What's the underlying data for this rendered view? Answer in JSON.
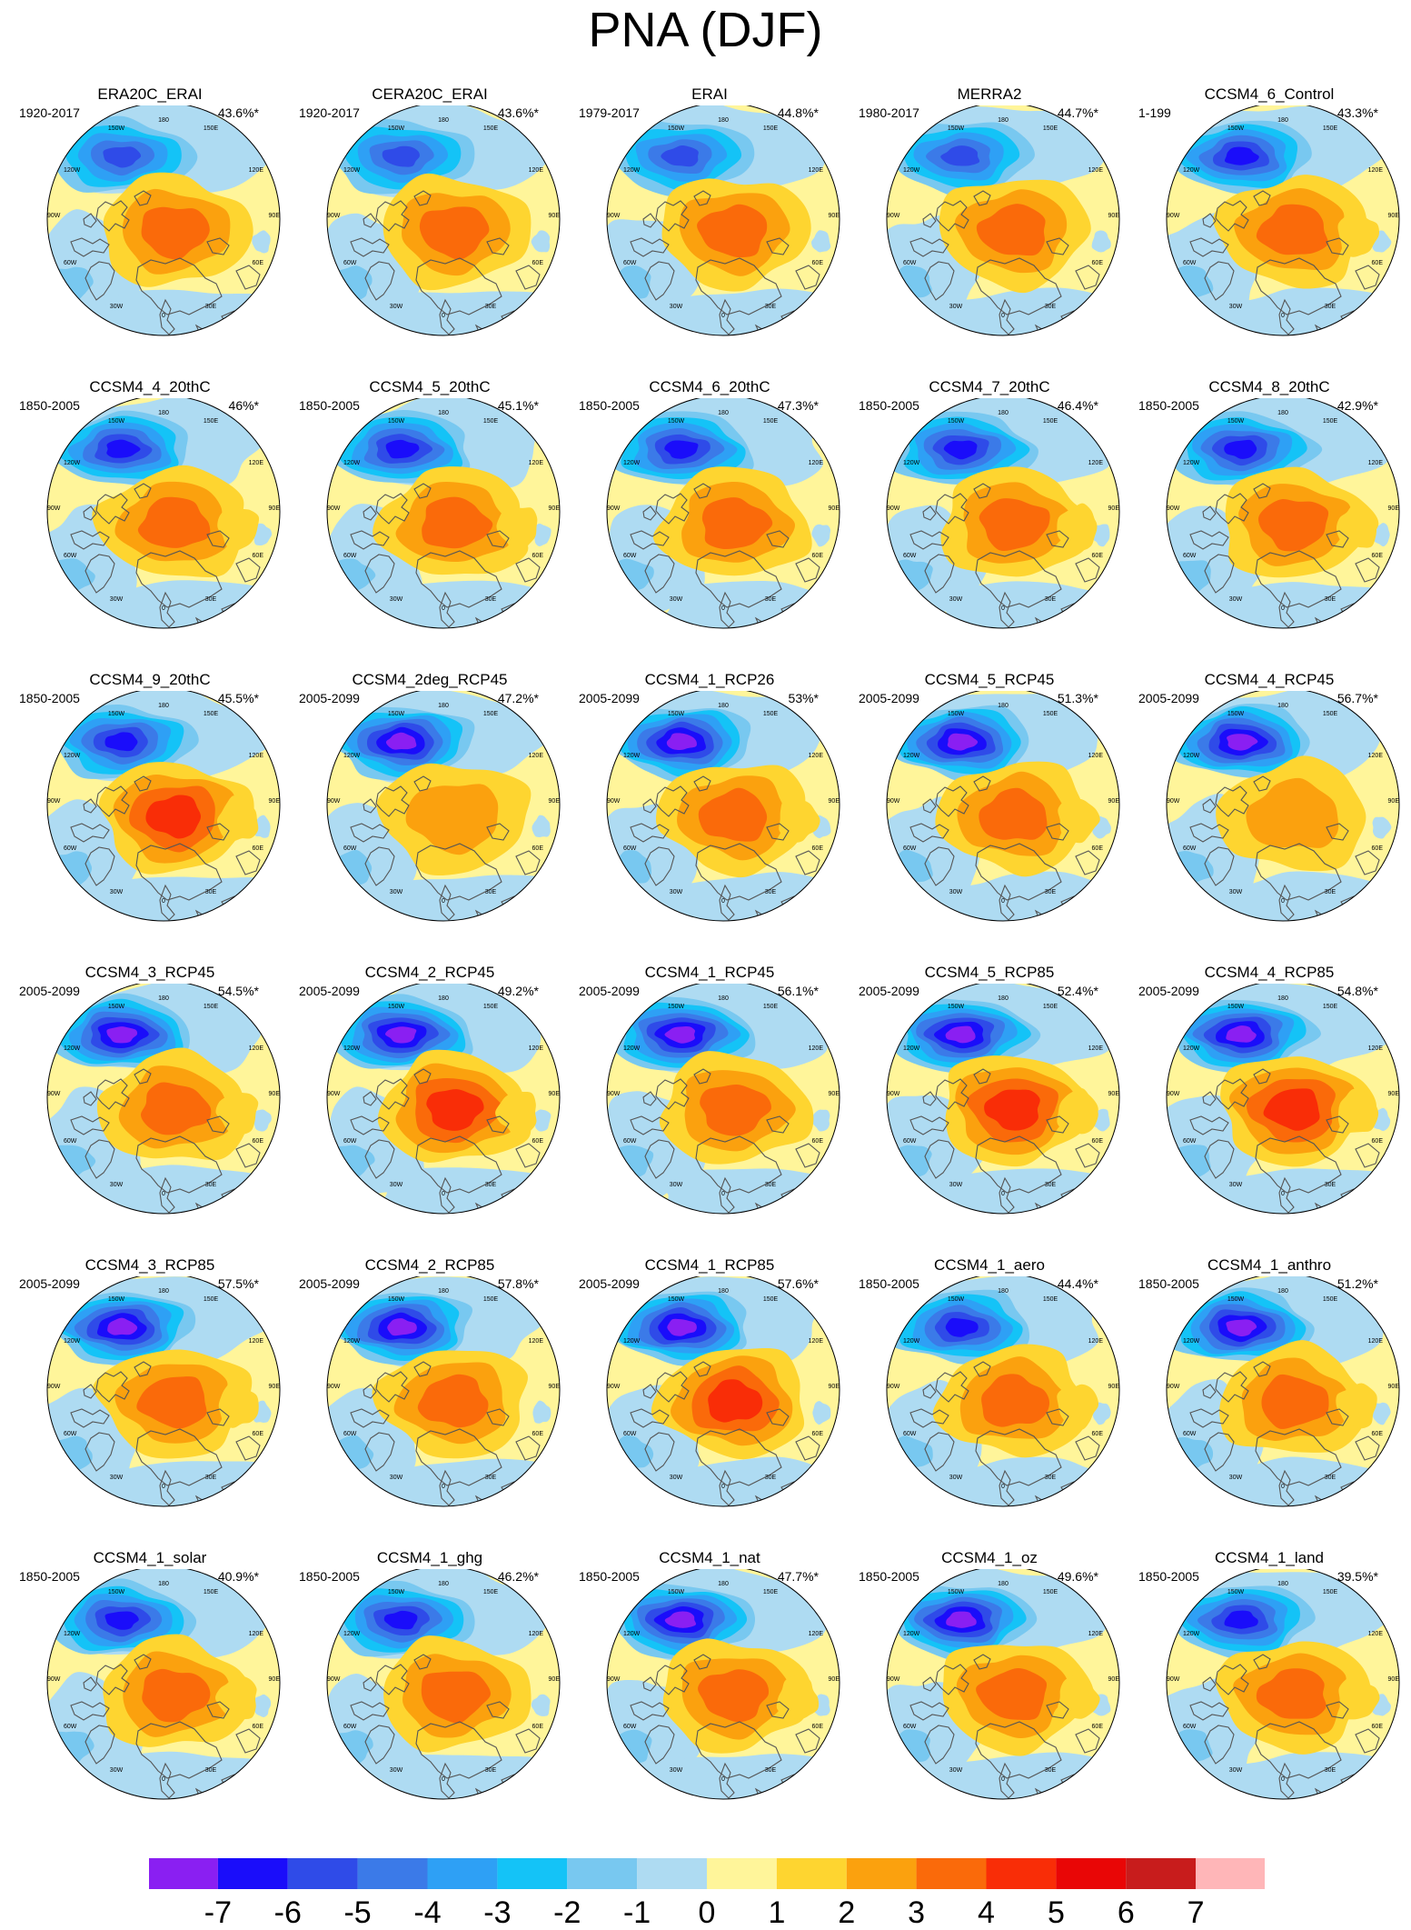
{
  "title": "PNA (DJF)",
  "lon_labels": {
    "top": "180",
    "nnw": "150W",
    "nne": "150E",
    "wnw": "120W",
    "ene": "120E",
    "w": "90W",
    "e": "90E",
    "wsw": "60W",
    "ese": "60E",
    "ssw": "30W",
    "sse": "30E",
    "bottom": "0"
  },
  "colorbar": {
    "labels": [
      "-7",
      "-6",
      "-5",
      "-4",
      "-3",
      "-2",
      "-1",
      "0",
      "1",
      "2",
      "3",
      "4",
      "5",
      "6",
      "7"
    ],
    "colors": [
      "#8a1ff2",
      "#1a0dfa",
      "#2f4be8",
      "#3b7ae8",
      "#2ea0f5",
      "#14c3f7",
      "#78c8f0",
      "#aedbf2",
      "#fff59a",
      "#fed530",
      "#fba10e",
      "#fa6a0a",
      "#f92d07",
      "#e90606",
      "#c81c1c",
      "#ffb6b8"
    ]
  },
  "panels": [
    {
      "name": "ERA20C_ERAI",
      "period": "1920-2017",
      "pct": "43.6%*",
      "neg": 5,
      "pos": 3,
      "ext": 0
    },
    {
      "name": "CERA20C_ERAI",
      "period": "1920-2017",
      "pct": "43.6%*",
      "neg": 5,
      "pos": 3,
      "ext": 0
    },
    {
      "name": "ERAI",
      "period": "1979-2017",
      "pct": "44.8%*",
      "neg": 5,
      "pos": 3,
      "ext": 0
    },
    {
      "name": "MERRA2",
      "period": "1980-2017",
      "pct": "44.7%*",
      "neg": 5,
      "pos": 3,
      "ext": 0
    },
    {
      "name": "CCSM4_6_Control",
      "period": "1-199",
      "pct": "43.3%*",
      "neg": 6,
      "pos": 3,
      "ext": 1
    },
    {
      "name": "CCSM4_4_20thC",
      "period": "1850-2005",
      "pct": "46%*",
      "neg": 6,
      "pos": 3,
      "ext": 1
    },
    {
      "name": "CCSM4_5_20thC",
      "period": "1850-2005",
      "pct": "45.1%*",
      "neg": 6,
      "pos": 3,
      "ext": 1
    },
    {
      "name": "CCSM4_6_20thC",
      "period": "1850-2005",
      "pct": "47.3%*",
      "neg": 6,
      "pos": 3,
      "ext": 0
    },
    {
      "name": "CCSM4_7_20thC",
      "period": "1850-2005",
      "pct": "46.4%*",
      "neg": 6,
      "pos": 3,
      "ext": 1
    },
    {
      "name": "CCSM4_8_20thC",
      "period": "1850-2005",
      "pct": "42.9%*",
      "neg": 6,
      "pos": 3,
      "ext": 1
    },
    {
      "name": "CCSM4_9_20thC",
      "period": "1850-2005",
      "pct": "45.5%*",
      "neg": 6,
      "pos": 4,
      "ext": 1
    },
    {
      "name": "CCSM4_2deg_RCP45",
      "period": "2005-2099",
      "pct": "47.2%*",
      "neg": 7,
      "pos": 2,
      "ext": 0
    },
    {
      "name": "CCSM4_1_RCP26",
      "period": "2005-2099",
      "pct": "53%*",
      "neg": 7,
      "pos": 3,
      "ext": 1
    },
    {
      "name": "CCSM4_5_RCP45",
      "period": "2005-2099",
      "pct": "51.3%*",
      "neg": 7,
      "pos": 3,
      "ext": 1
    },
    {
      "name": "CCSM4_4_RCP45",
      "period": "2005-2099",
      "pct": "56.7%*",
      "neg": 7,
      "pos": 2,
      "ext": 0
    },
    {
      "name": "CCSM4_3_RCP45",
      "period": "2005-2099",
      "pct": "54.5%*",
      "neg": 7,
      "pos": 3,
      "ext": 1
    },
    {
      "name": "CCSM4_2_RCP45",
      "period": "2005-2099",
      "pct": "49.2%*",
      "neg": 7,
      "pos": 4,
      "ext": 1
    },
    {
      "name": "CCSM4_1_RCP45",
      "period": "2005-2099",
      "pct": "56.1%*",
      "neg": 7,
      "pos": 3,
      "ext": 0
    },
    {
      "name": "CCSM4_5_RCP85",
      "period": "2005-2099",
      "pct": "52.4%*",
      "neg": 7,
      "pos": 4,
      "ext": 1
    },
    {
      "name": "CCSM4_4_RCP85",
      "period": "2005-2099",
      "pct": "54.8%*",
      "neg": 7,
      "pos": 4,
      "ext": 1
    },
    {
      "name": "CCSM4_3_RCP85",
      "period": "2005-2099",
      "pct": "57.5%*",
      "neg": 7,
      "pos": 3,
      "ext": 1
    },
    {
      "name": "CCSM4_2_RCP85",
      "period": "2005-2099",
      "pct": "57.8%*",
      "neg": 7,
      "pos": 3,
      "ext": 0
    },
    {
      "name": "CCSM4_1_RCP85",
      "period": "2005-2099",
      "pct": "57.6%*",
      "neg": 7,
      "pos": 4,
      "ext": 0
    },
    {
      "name": "CCSM4_1_aero",
      "period": "1850-2005",
      "pct": "44.4%*",
      "neg": 6,
      "pos": 3,
      "ext": 1
    },
    {
      "name": "CCSM4_1_anthro",
      "period": "1850-2005",
      "pct": "51.2%*",
      "neg": 7,
      "pos": 3,
      "ext": 1
    },
    {
      "name": "CCSM4_1_solar",
      "period": "1850-2005",
      "pct": "40.9%*",
      "neg": 6,
      "pos": 3,
      "ext": 1
    },
    {
      "name": "CCSM4_1_ghg",
      "period": "1850-2005",
      "pct": "46.2%*",
      "neg": 6,
      "pos": 3,
      "ext": 0
    },
    {
      "name": "CCSM4_1_nat",
      "period": "1850-2005",
      "pct": "47.7%*",
      "neg": 7,
      "pos": 3,
      "ext": 1
    },
    {
      "name": "CCSM4_1_oz",
      "period": "1850-2005",
      "pct": "49.6%*",
      "neg": 7,
      "pos": 3,
      "ext": 1
    },
    {
      "name": "CCSM4_1_land",
      "period": "1850-2005",
      "pct": "39.5%*",
      "neg": 6,
      "pos": 3,
      "ext": 1
    }
  ]
}
